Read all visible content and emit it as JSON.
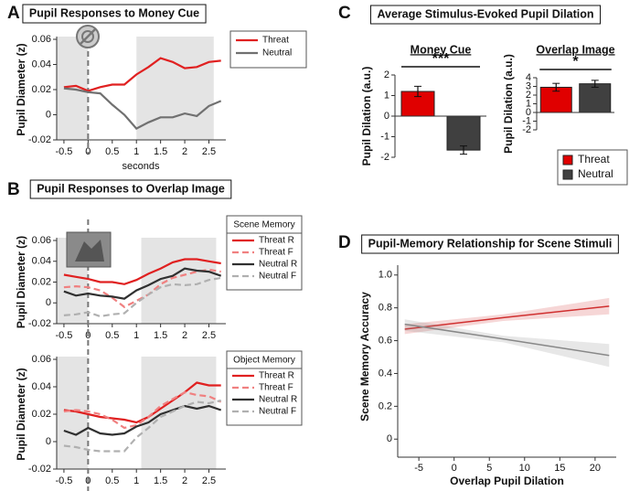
{
  "chart_data": [
    {
      "type": "line",
      "panel": "A",
      "title": "Pupil Responses to Money Cue",
      "ylabel": "Pupil Diameter (z)",
      "xlabel": "seconds",
      "x": [
        -0.5,
        -0.25,
        0,
        0.25,
        0.5,
        0.75,
        1,
        1.25,
        1.5,
        1.75,
        2,
        2.25,
        2.5,
        2.75
      ],
      "xlim": [
        -0.65,
        2.85
      ],
      "xticks": [
        -0.5,
        0,
        0.5,
        1,
        1.5,
        2,
        2.5
      ],
      "ylim": [
        -0.02,
        0.06
      ],
      "yticks": [
        -0.02,
        0,
        0.02,
        0.04,
        0.06
      ],
      "shaded": [
        [
          -0.65,
          0
        ],
        [
          1,
          2.6
        ]
      ],
      "vline": 0,
      "series": [
        {
          "name": "Threat",
          "color": "#e02020",
          "values": [
            0.022,
            0.023,
            0.019,
            0.022,
            0.024,
            0.024,
            0.032,
            0.038,
            0.045,
            0.042,
            0.037,
            0.038,
            0.042,
            0.043
          ]
        },
        {
          "name": "Neutral",
          "color": "#707070",
          "values": [
            0.021,
            0.02,
            0.018,
            0.017,
            0.008,
            0.0,
            -0.011,
            -0.006,
            -0.002,
            -0.002,
            0.001,
            -0.001,
            0.007,
            0.011
          ]
        }
      ]
    },
    {
      "type": "line_panels",
      "panel": "B",
      "title": "Pupil Responses to Overlap Image",
      "ylabel": "Pupil Diameter (z)",
      "x": [
        -0.5,
        -0.25,
        0,
        0.25,
        0.5,
        0.75,
        1,
        1.25,
        1.5,
        1.75,
        2,
        2.25,
        2.5,
        2.75
      ],
      "xlim": [
        -0.65,
        2.85
      ],
      "xticks": [
        -0.5,
        0,
        0.5,
        1,
        1.5,
        2,
        2.5
      ],
      "ylim": [
        -0.02,
        0.06
      ],
      "yticks": [
        -0.02,
        0,
        0.02,
        0.04,
        0.06
      ],
      "shaded": [
        [
          -0.65,
          0
        ],
        [
          1.1,
          2.65
        ]
      ],
      "vline": 0,
      "panels": [
        {
          "legend_title": "Scene Memory",
          "series": [
            {
              "name": "Threat R",
              "color": "#e02020",
              "dash": false,
              "values": [
                0.027,
                0.025,
                0.023,
                0.02,
                0.02,
                0.018,
                0.022,
                0.028,
                0.033,
                0.039,
                0.042,
                0.042,
                0.04,
                0.038
              ]
            },
            {
              "name": "Threat F",
              "color": "#f08080",
              "dash": true,
              "values": [
                0.015,
                0.016,
                0.015,
                0.012,
                0.005,
                -0.004,
                0.002,
                0.008,
                0.018,
                0.024,
                0.027,
                0.03,
                0.032,
                0.03
              ]
            },
            {
              "name": "Neutral R",
              "color": "#303030",
              "dash": false,
              "values": [
                0.011,
                0.007,
                0.009,
                0.007,
                0.006,
                0.004,
                0.012,
                0.017,
                0.023,
                0.026,
                0.033,
                0.031,
                0.03,
                0.026
              ]
            },
            {
              "name": "Neutral F",
              "color": "#b0b0b0",
              "dash": true,
              "values": [
                -0.012,
                -0.011,
                -0.009,
                -0.013,
                -0.011,
                -0.01,
                0.0,
                0.008,
                0.015,
                0.018,
                0.017,
                0.018,
                0.022,
                0.024
              ]
            }
          ]
        },
        {
          "legend_title": "Object Memory",
          "series": [
            {
              "name": "Threat R",
              "color": "#e02020",
              "dash": false,
              "values": [
                0.023,
                0.022,
                0.02,
                0.018,
                0.017,
                0.016,
                0.014,
                0.018,
                0.024,
                0.03,
                0.036,
                0.043,
                0.041,
                0.041
              ]
            },
            {
              "name": "Threat F",
              "color": "#f08080",
              "dash": true,
              "values": [
                0.022,
                0.023,
                0.022,
                0.02,
                0.016,
                0.01,
                0.012,
                0.018,
                0.026,
                0.031,
                0.036,
                0.034,
                0.033,
                0.029
              ]
            },
            {
              "name": "Neutral R",
              "color": "#303030",
              "dash": false,
              "values": [
                0.008,
                0.005,
                0.01,
                0.006,
                0.005,
                0.006,
                0.011,
                0.014,
                0.02,
                0.023,
                0.026,
                0.024,
                0.026,
                0.023
              ]
            },
            {
              "name": "Neutral F",
              "color": "#b0b0b0",
              "dash": true,
              "values": [
                -0.003,
                -0.004,
                -0.006,
                -0.007,
                -0.007,
                -0.007,
                0.003,
                0.01,
                0.018,
                0.022,
                0.026,
                0.029,
                0.028,
                0.03
              ]
            }
          ]
        }
      ]
    },
    {
      "type": "bar_panels",
      "panel": "C",
      "title": "Average Stimulus-Evoked Pupil Dilation",
      "ylabel": "Pupil Dilation (a.u.)",
      "series": [
        {
          "name": "Threat",
          "color": "#e00000"
        },
        {
          "name": "Neutral",
          "color": "#404040"
        }
      ],
      "panels": [
        {
          "subtitle": "Money Cue",
          "values": [
            1.2,
            -1.65
          ],
          "errors": [
            0.25,
            0.2
          ],
          "ylim": [
            -2,
            2
          ],
          "yticks": [
            -2,
            -1,
            0,
            1,
            2
          ],
          "significance": "***"
        },
        {
          "subtitle": "Overlap Image",
          "values": [
            2.9,
            3.3
          ],
          "errors": [
            0.45,
            0.4
          ],
          "ylim": [
            -2,
            4
          ],
          "yticks": [
            -2,
            -1,
            0,
            1,
            2,
            3,
            4
          ],
          "significance": "*"
        }
      ]
    },
    {
      "type": "regression",
      "panel": "D",
      "title": "Pupil-Memory Relationship for Scene Stimuli",
      "xlabel": "Overlap Pupil Dilation",
      "ylabel": "Scene Memory Accuracy",
      "xlim": [
        -8,
        23
      ],
      "xticks": [
        -5,
        0,
        5,
        10,
        15,
        20
      ],
      "ylim": [
        -0.11,
        1.06
      ],
      "yticks": [
        0,
        0.2,
        0.4,
        0.6,
        0.8,
        {
          "value": 1,
          "label": "1.0"
        }
      ],
      "series": [
        {
          "color": "#d03030",
          "x": [
            -7,
            7,
            22
          ],
          "values": [
            0.67,
            0.74,
            0.81
          ],
          "lower": [
            0.64,
            0.72,
            0.76
          ],
          "upper": [
            0.7,
            0.76,
            0.86
          ]
        },
        {
          "color": "#888888",
          "x": [
            -7,
            7,
            22
          ],
          "values": [
            0.7,
            0.61,
            0.51
          ],
          "lower": [
            0.66,
            0.59,
            0.44
          ],
          "upper": [
            0.73,
            0.63,
            0.58
          ]
        }
      ]
    }
  ]
}
